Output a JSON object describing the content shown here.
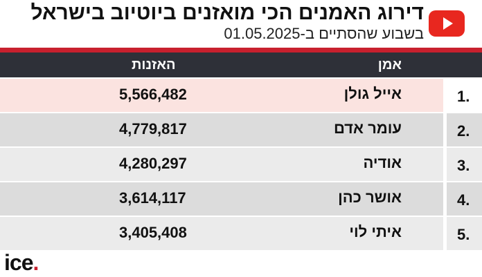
{
  "header": {
    "title": "דירוג האמנים הכי מואזנים ביוטיוב בישראל",
    "subtitle": "בשבוע שהסתיים ב-01.05.2025",
    "logo_icon": "youtube-icon"
  },
  "table": {
    "columns": {
      "artist": "אמן",
      "plays": "האזנות"
    },
    "rows": [
      {
        "rank": "1.",
        "artist": "אייל גולן",
        "plays": "5,566,482"
      },
      {
        "rank": "2.",
        "artist": "עומר אדם",
        "plays": "4,779,817"
      },
      {
        "rank": "3.",
        "artist": "אודיה",
        "plays": "4,280,297"
      },
      {
        "rank": "4.",
        "artist": "אושר כהן",
        "plays": "3,614,117"
      },
      {
        "rank": "5.",
        "artist": "איתי לוי",
        "plays": "3,405,408"
      }
    ]
  },
  "footer": {
    "brand": "ice",
    "brand_dot": "."
  },
  "colors": {
    "accent_red": "#c8202e",
    "header_dark": "#2e3038",
    "first_row": "#fbe3e0",
    "row_gray": "#dcdcdc",
    "row_light": "#ebebeb"
  }
}
